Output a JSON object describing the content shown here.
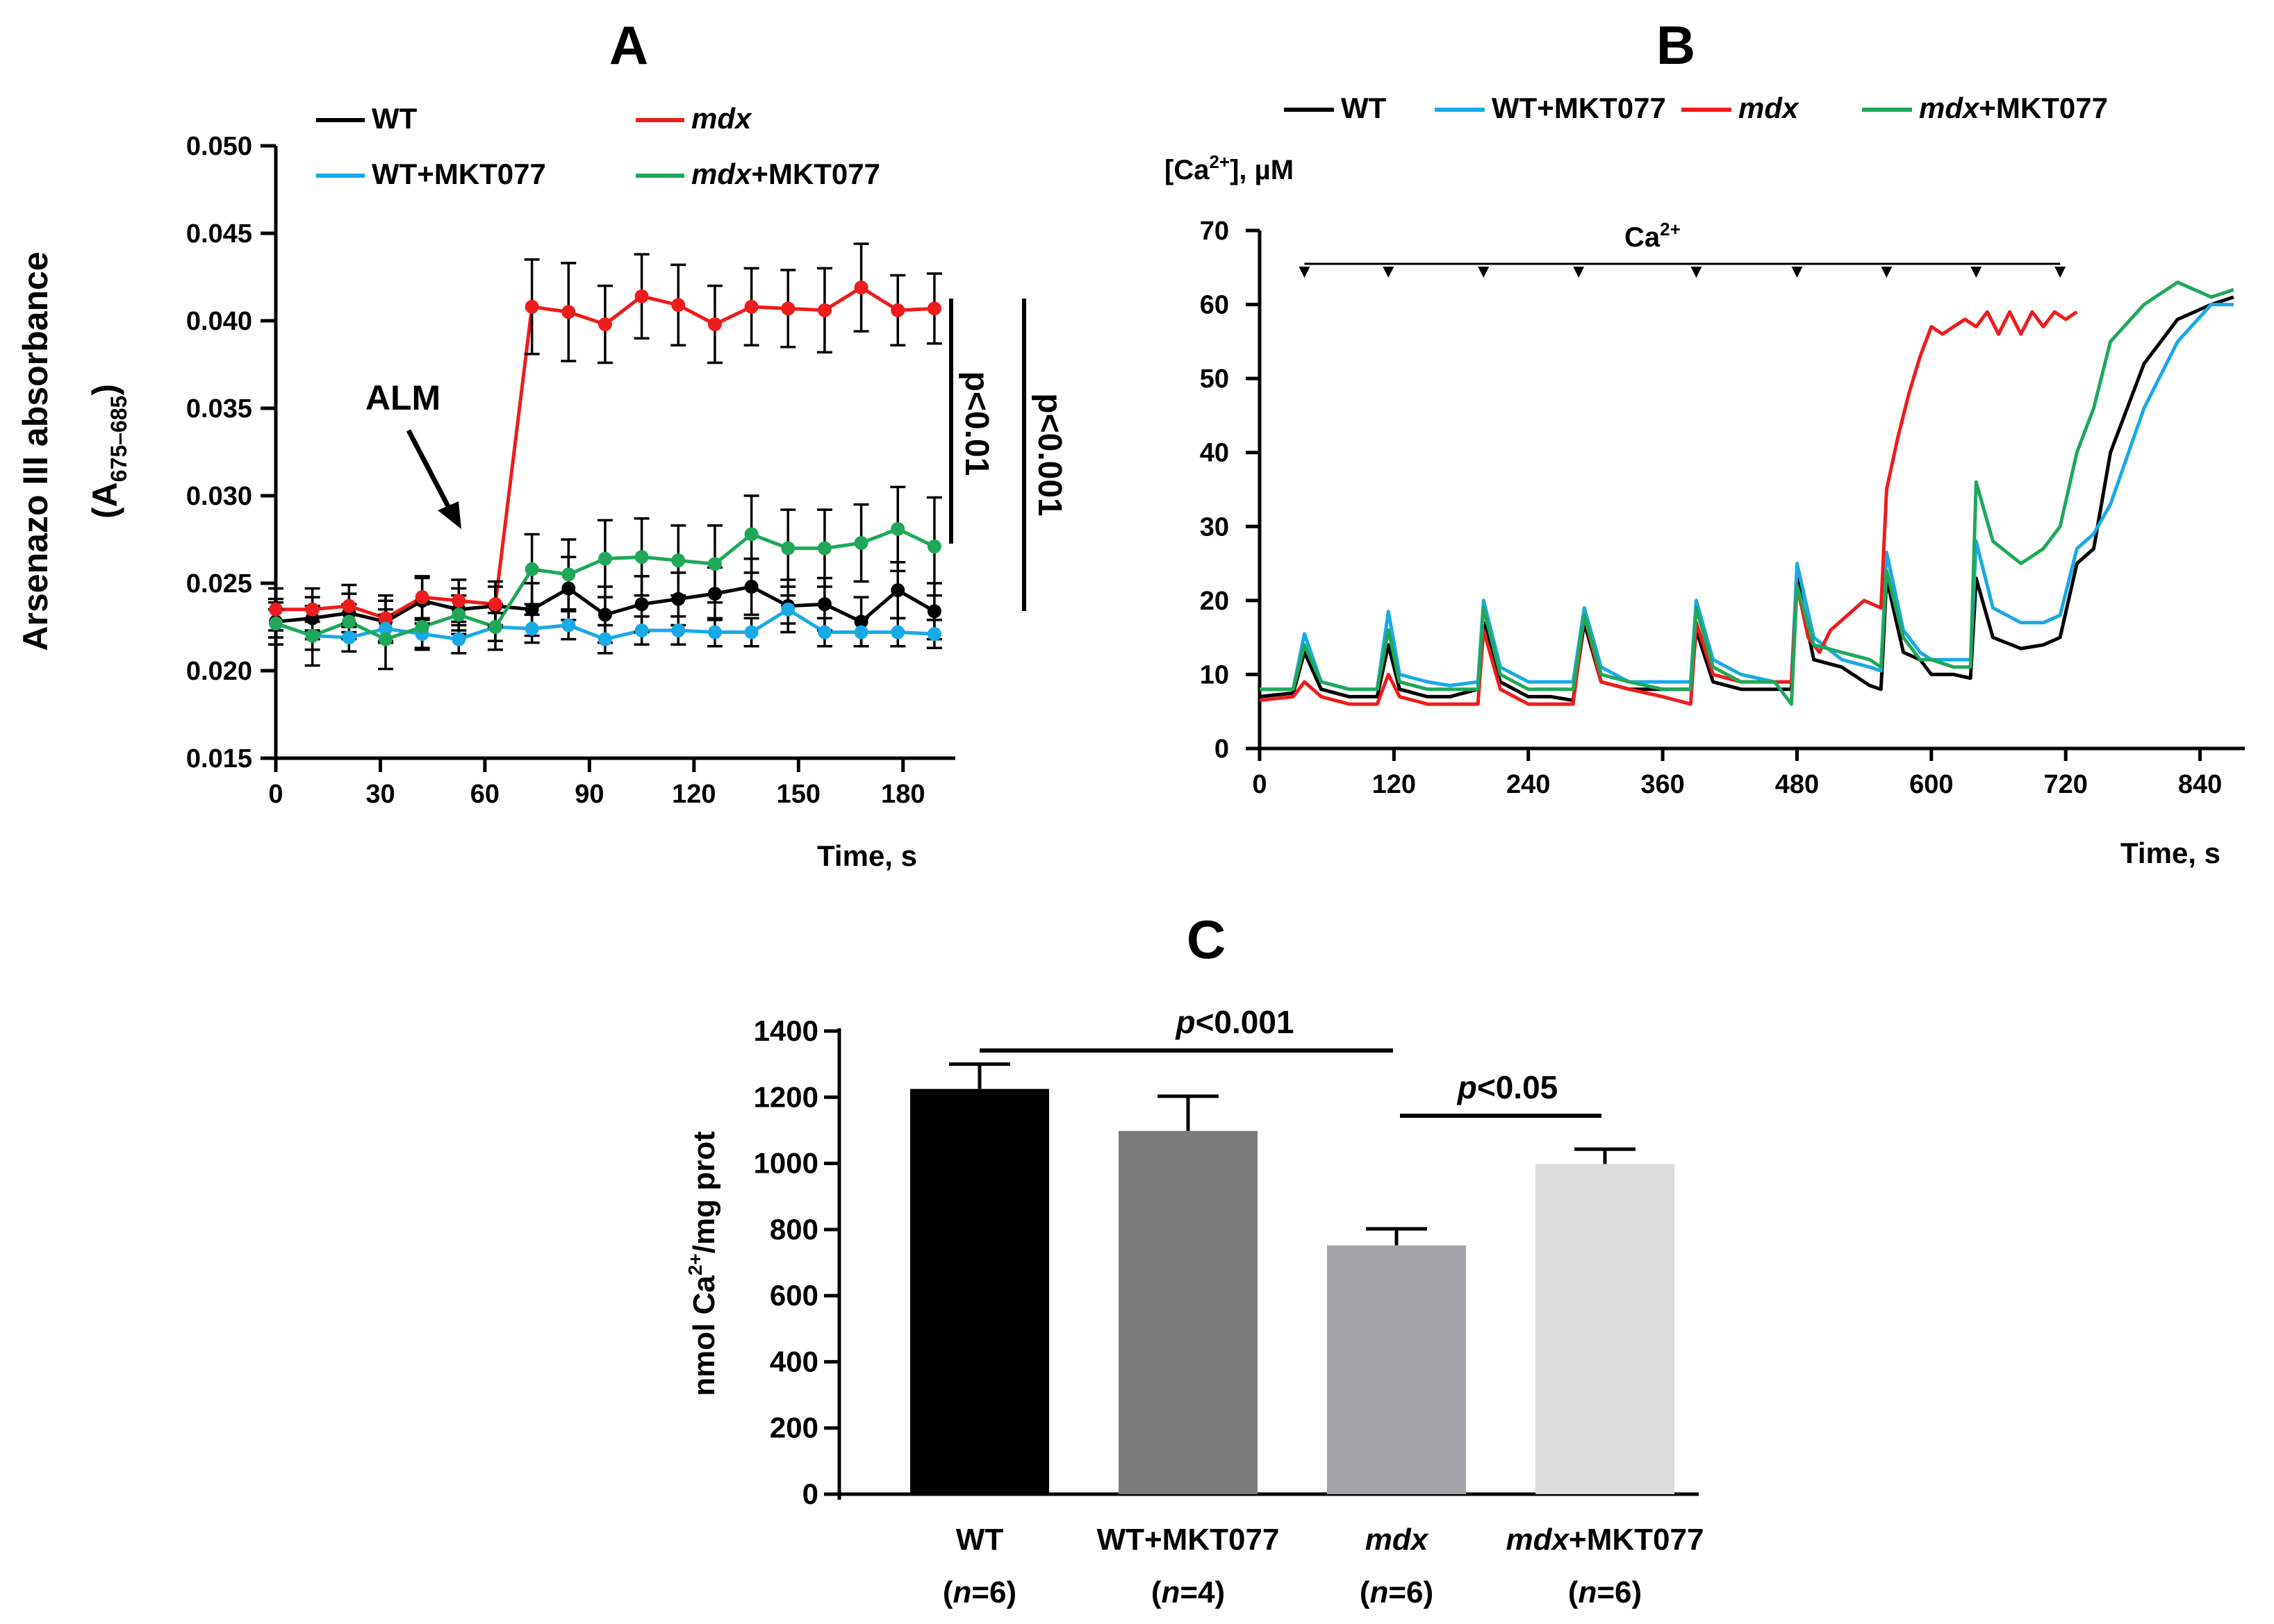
{
  "figure": {
    "panels": [
      {
        "letter": "A"
      },
      {
        "letter": "B"
      },
      {
        "letter": "C"
      }
    ]
  },
  "chart_data": [
    {
      "panel": "A",
      "type": "line",
      "title": "",
      "xlabel": "Time, s",
      "ylabel_main": "Arsenazo III absorbance",
      "ylabel_sub_open": "(A",
      "ylabel_sub_subscript": "675–685",
      "ylabel_sub_close": ")",
      "xlim": [
        0,
        195
      ],
      "ylim": [
        0.015,
        0.05
      ],
      "xticks": [
        0,
        30,
        60,
        90,
        120,
        150,
        180
      ],
      "yticks": [
        0.015,
        0.02,
        0.025,
        0.03,
        0.035,
        0.04,
        0.045,
        0.05
      ],
      "ytick_labels": [
        "0.015",
        "0.020",
        "0.025",
        "0.030",
        "0.035",
        "0.040",
        "0.045",
        "0.050"
      ],
      "x": [
        0,
        10.5,
        21,
        31.5,
        42,
        52.5,
        63,
        73.5,
        84,
        94.5,
        105,
        115.5,
        126,
        136.5,
        147,
        157.5,
        168,
        178.5,
        189
      ],
      "legend": [
        {
          "label": "WT",
          "italic": "",
          "rest": "WT",
          "color": "#000000"
        },
        {
          "label": "mdx",
          "italic": "mdx",
          "rest": "",
          "color": "#ee1c1c"
        },
        {
          "label": "WT+MKT077",
          "italic": "",
          "rest": "WT+MKT077",
          "color": "#19a9e6"
        },
        {
          "label": "mdx+MKT077",
          "italic": "mdx",
          "rest": "+MKT077",
          "color": "#1fa85a"
        }
      ],
      "series": [
        {
          "name": "WT",
          "color": "#000000",
          "values": [
            0.0228,
            0.023,
            0.0233,
            0.0228,
            0.024,
            0.0235,
            0.0237,
            0.0235,
            0.0247,
            0.0232,
            0.0238,
            0.0241,
            0.0244,
            0.0248,
            0.0237,
            0.0238,
            0.0228,
            0.0246,
            0.0234
          ],
          "errors": [
            0.0013,
            0.0012,
            0.0011,
            0.0012,
            0.0013,
            0.0012,
            0.0011,
            0.0015,
            0.0018,
            0.0016,
            0.0016,
            0.0015,
            0.0015,
            0.0016,
            0.0015,
            0.0015,
            0.0014,
            0.0016,
            0.0016
          ]
        },
        {
          "name": "mdx",
          "color": "#ee1c1c",
          "values": [
            0.0235,
            0.0235,
            0.0237,
            0.023,
            0.0242,
            0.024,
            0.0238,
            0.0408,
            0.0405,
            0.0398,
            0.0414,
            0.0409,
            0.0398,
            0.0408,
            0.0407,
            0.0406,
            0.0419,
            0.0406,
            0.0407
          ],
          "errors": [
            0.0012,
            0.0012,
            0.0012,
            0.0013,
            0.0012,
            0.0012,
            0.0013,
            0.0027,
            0.0028,
            0.0022,
            0.0024,
            0.0023,
            0.0022,
            0.0022,
            0.0022,
            0.0024,
            0.0025,
            0.002,
            0.002
          ]
        },
        {
          "name": "WT+MKT077",
          "color": "#19a9e6",
          "values": [
            0.0227,
            0.022,
            0.0219,
            0.0224,
            0.0221,
            0.0218,
            0.0225,
            0.0224,
            0.0226,
            0.0218,
            0.0223,
            0.0223,
            0.0222,
            0.0222,
            0.0235,
            0.0222,
            0.0222,
            0.0222,
            0.0221
          ],
          "errors": [
            0.0008,
            0.0008,
            0.0008,
            0.0008,
            0.0008,
            0.0008,
            0.0008,
            0.0008,
            0.0008,
            0.0008,
            0.0008,
            0.0008,
            0.0008,
            0.0008,
            0.0008,
            0.0008,
            0.0008,
            0.0008,
            0.0008
          ]
        },
        {
          "name": "mdx+MKT077",
          "color": "#1fa85a",
          "values": [
            0.0227,
            0.022,
            0.0228,
            0.0218,
            0.0225,
            0.0232,
            0.0225,
            0.0258,
            0.0255,
            0.0264,
            0.0265,
            0.0263,
            0.0261,
            0.0278,
            0.027,
            0.027,
            0.0273,
            0.0281,
            0.0271
          ],
          "errors": [
            0.0012,
            0.0017,
            0.001,
            0.0017,
            0.0013,
            0.0011,
            0.0013,
            0.002,
            0.002,
            0.0022,
            0.0022,
            0.002,
            0.0022,
            0.0022,
            0.0022,
            0.0022,
            0.0022,
            0.0024,
            0.0028
          ]
        }
      ],
      "annotations": {
        "arrow_label": "ALM",
        "sig1": "p<0.01",
        "sig2": "p<0.001"
      }
    },
    {
      "panel": "B",
      "type": "line",
      "title": "",
      "xlabel": "Time, s",
      "ylabel_prefix": "[Ca",
      "ylabel_superscript": "2+",
      "ylabel_suffix": "], µM",
      "xlim": [
        0,
        880
      ],
      "ylim": [
        0,
        70
      ],
      "xticks": [
        0,
        120,
        240,
        360,
        480,
        600,
        720,
        840
      ],
      "yticks": [
        0,
        10,
        20,
        30,
        40,
        50,
        60,
        70
      ],
      "legend": [
        {
          "label": "WT",
          "italic": "",
          "rest": "WT",
          "color": "#000000"
        },
        {
          "label": "WT+MKT077",
          "italic": "",
          "rest": "WT+MKT077",
          "color": "#19a9e6"
        },
        {
          "label": "mdx",
          "italic": "mdx",
          "rest": "",
          "color": "#ee1c1c"
        },
        {
          "label": "mdx+MKT077",
          "italic": "mdx",
          "rest": "+MKT077",
          "color": "#1fa85a"
        }
      ],
      "ca_additions_s": [
        40,
        115,
        200,
        285,
        390,
        480,
        560,
        640,
        715
      ],
      "ca_label_base": "Ca",
      "ca_label_superscript": "2+",
      "series": [
        {
          "name": "WT",
          "color": "#000000",
          "x": [
            0,
            30,
            40,
            55,
            80,
            105,
            115,
            125,
            150,
            170,
            195,
            200,
            215,
            240,
            260,
            280,
            290,
            305,
            330,
            360,
            385,
            390,
            405,
            430,
            460,
            475,
            480,
            495,
            520,
            545,
            555,
            560,
            575,
            590,
            600,
            620,
            635,
            640,
            655,
            680,
            700,
            715,
            730,
            745,
            760,
            790,
            820,
            850,
            870
          ],
          "y": [
            7,
            7.5,
            13,
            8,
            7,
            7,
            14,
            8,
            7,
            7,
            8,
            17,
            9,
            7,
            7,
            6.5,
            17,
            9,
            8,
            8,
            8,
            16,
            9,
            8,
            8,
            8,
            23,
            12,
            11,
            8.5,
            8,
            23,
            13,
            12,
            10,
            10,
            9.5,
            23,
            15,
            13.5,
            14,
            15,
            25,
            27,
            40,
            52,
            58,
            60,
            61
          ]
        },
        {
          "name": "WT+MKT077",
          "color": "#19a9e6",
          "x": [
            0,
            30,
            40,
            55,
            80,
            105,
            115,
            125,
            150,
            170,
            195,
            200,
            215,
            240,
            260,
            280,
            290,
            305,
            330,
            360,
            385,
            390,
            405,
            430,
            460,
            475,
            480,
            495,
            520,
            545,
            555,
            560,
            575,
            590,
            600,
            620,
            635,
            640,
            655,
            680,
            700,
            715,
            730,
            745,
            760,
            790,
            820,
            850,
            870
          ],
          "y": [
            8,
            8,
            15.5,
            9,
            8,
            8,
            18.5,
            10,
            9,
            8.5,
            9,
            20,
            11,
            9,
            9,
            9,
            19,
            11,
            9,
            9,
            9,
            20,
            12,
            10,
            9,
            9,
            25,
            15,
            12,
            11,
            10.5,
            26.5,
            16,
            13,
            12,
            12,
            12,
            28,
            19,
            17,
            17,
            18,
            27,
            29,
            33,
            46,
            55,
            60,
            60
          ]
        },
        {
          "name": "mdx",
          "color": "#ee1c1c",
          "x": [
            0,
            30,
            40,
            55,
            80,
            105,
            115,
            125,
            150,
            170,
            195,
            200,
            215,
            240,
            260,
            280,
            290,
            305,
            330,
            360,
            385,
            390,
            405,
            430,
            460,
            475,
            480,
            490,
            500,
            510,
            525,
            540,
            555,
            560,
            570,
            580,
            590,
            600,
            610,
            620,
            630,
            640,
            650,
            660,
            670,
            680,
            690,
            700,
            710,
            720,
            730
          ],
          "y": [
            6.5,
            7,
            9,
            7,
            6,
            6,
            10,
            7,
            6,
            6,
            6,
            16,
            8,
            6,
            6,
            6,
            18,
            9,
            8,
            7,
            6,
            17,
            10,
            9,
            9,
            9,
            22,
            15,
            13,
            16,
            18,
            20,
            19,
            35,
            42,
            48,
            53,
            57,
            56,
            57,
            58,
            57,
            59,
            56,
            59,
            56,
            59,
            57,
            59,
            58,
            59
          ]
        },
        {
          "name": "mdx+MKT077",
          "color": "#1fa85a",
          "x": [
            0,
            30,
            40,
            55,
            80,
            105,
            115,
            125,
            150,
            170,
            195,
            200,
            215,
            240,
            260,
            280,
            290,
            305,
            330,
            360,
            385,
            390,
            405,
            430,
            460,
            475,
            480,
            495,
            520,
            545,
            555,
            560,
            575,
            590,
            600,
            620,
            635,
            640,
            655,
            680,
            700,
            715,
            730,
            745,
            760,
            790,
            820,
            850,
            870
          ],
          "y": [
            8,
            8,
            14,
            9,
            8,
            8,
            16,
            9,
            8,
            8,
            8,
            19,
            10,
            8,
            8,
            8,
            18,
            10,
            9,
            8,
            8,
            19,
            11,
            9,
            9,
            6,
            22,
            14,
            13,
            12,
            11,
            24,
            15,
            12,
            12,
            11,
            11,
            36,
            28,
            25,
            27,
            30,
            40,
            46,
            55,
            60,
            63,
            61,
            62
          ]
        }
      ]
    },
    {
      "panel": "C",
      "type": "bar",
      "title": "",
      "ylabel_prefix": "nmol Ca",
      "ylabel_superscript": "2+",
      "ylabel_suffix": "/mg prot",
      "ylim": [
        0,
        1400
      ],
      "yticks": [
        0,
        200,
        400,
        600,
        800,
        1000,
        1200,
        1400
      ],
      "categories": [
        {
          "italic": "",
          "rest": "WT",
          "n_label": "n",
          "n_value": "=6",
          "open": "(",
          "close": ")"
        },
        {
          "italic": "",
          "rest": "WT+MKT077",
          "n_label": "n",
          "n_value": "=4",
          "open": "(",
          "close": ")"
        },
        {
          "italic": "mdx",
          "rest": "",
          "n_label": "n",
          "n_value": "=6",
          "open": "(",
          "close": ")"
        },
        {
          "italic": "mdx",
          "rest": "+MKT077",
          "n_label": "n",
          "n_value": "=6",
          "open": "(",
          "close": ")"
        }
      ],
      "values": [
        1225,
        1098,
        752,
        998
      ],
      "errors": [
        75,
        105,
        50,
        45
      ],
      "colors": [
        "#000000",
        "#7b7b7b",
        "#a5a3aa",
        "#dcdcdc"
      ],
      "significance": [
        {
          "from": 0,
          "to": 2,
          "p_italic": "p",
          "p_rest": "<0.001"
        },
        {
          "from": 2,
          "to": 3,
          "p_italic": "p",
          "p_rest": "<0.05"
        }
      ]
    }
  ]
}
